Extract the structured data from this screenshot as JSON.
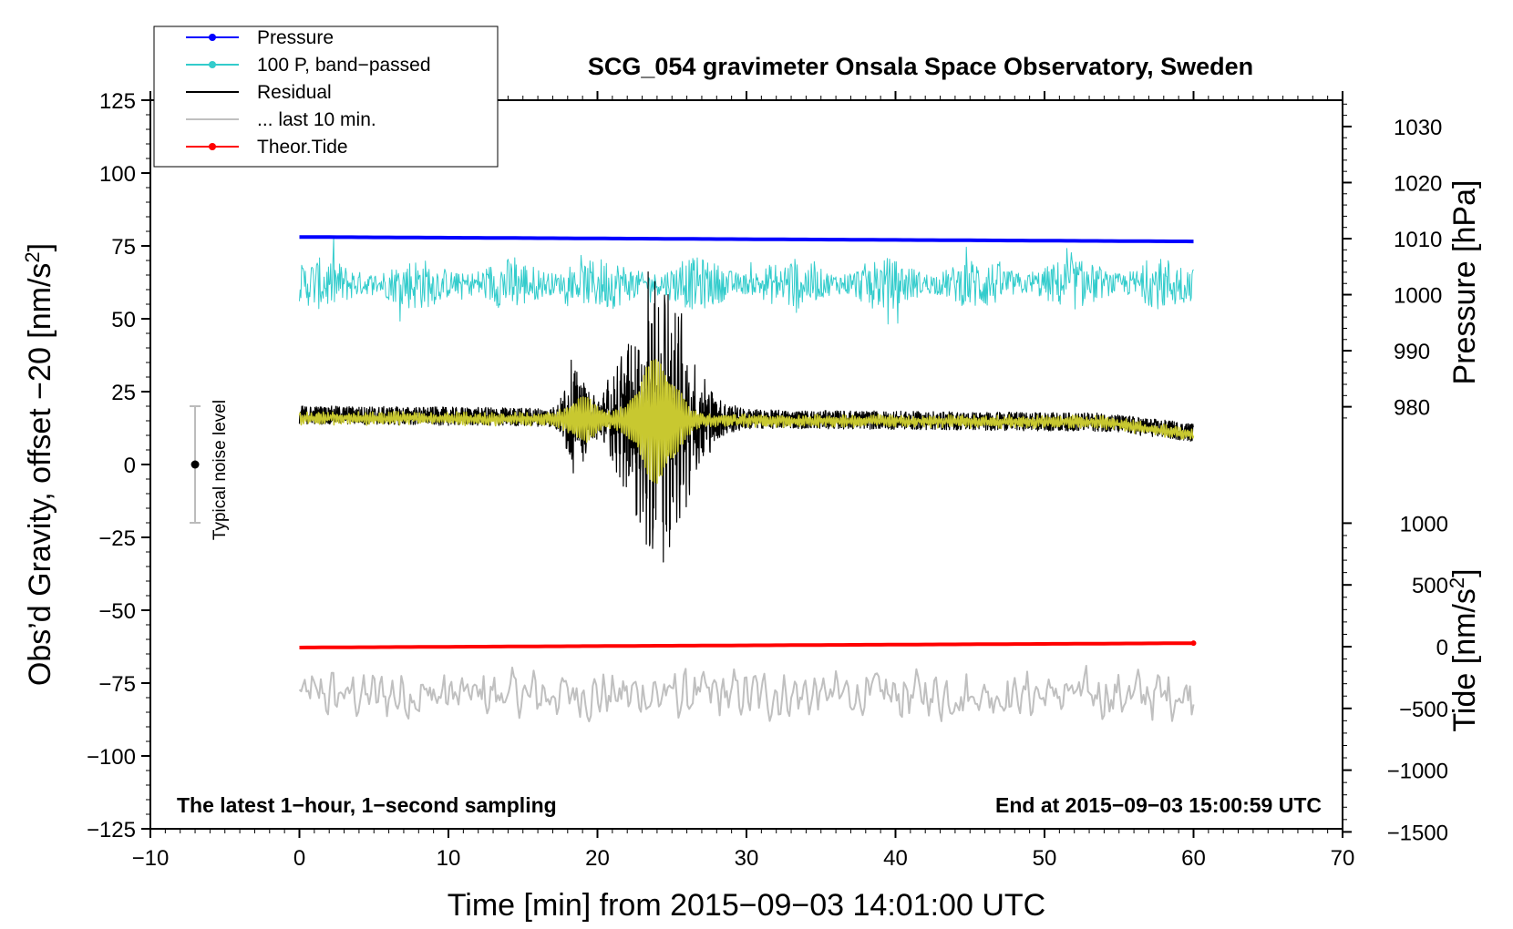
{
  "chart_data": {
    "type": "line",
    "title": "SCG_054 gravimeter Onsala Space Observatory, Sweden",
    "xlabel": "Time [min] from 2015−09−03 14:01:00 UTC",
    "ylabel_left": "Obs’d Gravity, offset −20 [nm/s",
    "ylabel_left_sup": "2",
    "ylabel_left_tail": "]",
    "ylabel_right_top": "Pressure [hPa]",
    "ylabel_right_bottom": "Tide [nm/s",
    "ylabel_right_bottom_sup": "2",
    "ylabel_right_bottom_tail": "]",
    "xlim": [
      -10,
      70
    ],
    "ylim_left": [
      -125,
      125
    ],
    "x_ticks": [
      -10,
      0,
      10,
      20,
      30,
      40,
      50,
      60,
      70
    ],
    "x_tick_labels": [
      "−10",
      "0",
      "10",
      "20",
      "30",
      "40",
      "50",
      "60",
      "70"
    ],
    "y_left_ticks": [
      -125,
      -100,
      -75,
      -50,
      -25,
      0,
      25,
      50,
      75,
      100,
      125
    ],
    "y_left_tick_labels": [
      "−125",
      "−100",
      "−75",
      "−50",
      "−25",
      "0",
      "25",
      "50",
      "75",
      "100",
      "125"
    ],
    "pressure_axis": {
      "ticks": [
        980,
        990,
        1000,
        1010,
        1020,
        1030
      ],
      "tick_labels": [
        "980",
        "990",
        "1000",
        "1010",
        "1020",
        "1030"
      ],
      "hpa_per_left_unit": 0.52,
      "ref_hpa": 1010,
      "ref_left": 77.5
    },
    "tide_axis": {
      "ticks": [
        -1500,
        -1000,
        -500,
        0,
        500,
        1000
      ],
      "tick_labels": [
        "−1500",
        "−1000",
        "−500",
        "0",
        "500",
        "1000"
      ],
      "ref_tide": 0,
      "ref_left": -62.5,
      "tide_per_left_unit": 23.6
    },
    "annotations": {
      "bottom_left": "The latest 1−hour, 1−second sampling",
      "bottom_right": "End at 2015−09−03 15:00:59 UTC",
      "noise_label": "Typical noise level",
      "noise_bar": {
        "x": -7,
        "center": 0,
        "low": -20,
        "high": 20
      }
    },
    "legend": {
      "position": "top-left",
      "items": [
        {
          "label": "Pressure",
          "color": "#0000ff",
          "marker": true
        },
        {
          "label": "100 P, band−passed",
          "color": "#33cccc",
          "marker": true
        },
        {
          "label": "Residual",
          "color": "#000000",
          "marker": false
        },
        {
          "label": "... last 10 min.",
          "color": "#c0c0c0",
          "marker": false
        },
        {
          "label": "Theor.Tide",
          "color": "#ff0000",
          "marker": true
        }
      ]
    },
    "series": [
      {
        "name": "Pressure",
        "color": "#0000ff",
        "x_range": [
          0,
          60
        ],
        "start": 1010.3,
        "end": 1009.5
      },
      {
        "name": "100 P, band−passed",
        "color": "#33cccc",
        "x_range": [
          0,
          60
        ],
        "baseline": 62,
        "amplitude": 9
      },
      {
        "name": "Residual",
        "color": "#000000",
        "x_range": [
          0,
          60
        ],
        "baseline": 17,
        "amplitude": 4.5,
        "event": {
          "center_min": 24,
          "peak_amplitude": 40,
          "half_width_min": 3
        },
        "end_baseline": 11
      },
      {
        "name": "Residual (smoothed)",
        "color": "#c8c830",
        "x_range": [
          0,
          60
        ],
        "baseline": 16
      },
      {
        "name": "... last 10 min.",
        "color": "#c0c0c0",
        "x_range": [
          0,
          60
        ],
        "baseline": -79,
        "amplitude": 5
      },
      {
        "name": "Theor.Tide",
        "color": "#ff0000",
        "x_range": [
          0,
          60.3
        ],
        "start": -62.8,
        "end": -61.3
      }
    ]
  }
}
